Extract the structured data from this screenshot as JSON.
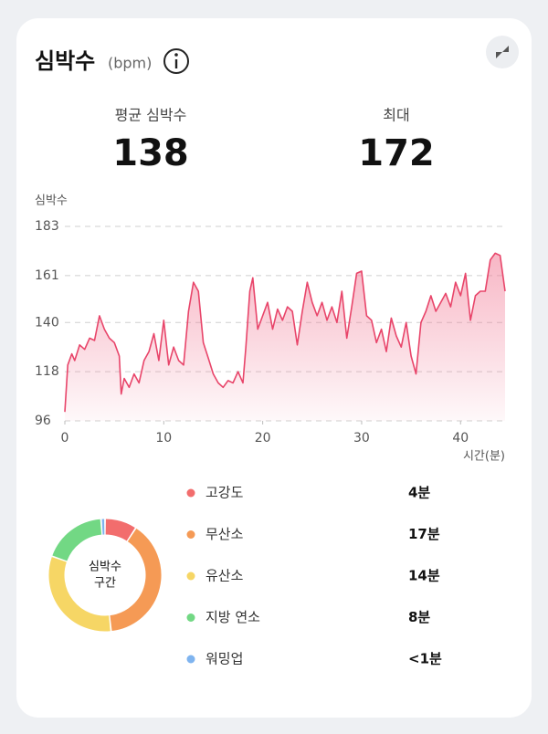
{
  "header": {
    "title": "심박수",
    "unit": "(bpm)"
  },
  "stats": [
    {
      "label": "평균 심박수",
      "value": 138
    },
    {
      "label": "최대",
      "value": 172
    }
  ],
  "chart_data": [
    {
      "type": "area",
      "y_label": "심박수",
      "x_label": "시간(분)",
      "color": "#e8456a",
      "grid": true,
      "xlim": [
        0,
        44.5
      ],
      "xticks": [
        0,
        10,
        20,
        30,
        40
      ],
      "ylim": [
        96,
        183
      ],
      "yticks": [
        96,
        118,
        140,
        161,
        183
      ],
      "x": [
        0,
        0.3,
        0.7,
        1,
        1.5,
        2,
        2.5,
        3,
        3.5,
        4,
        4.5,
        5,
        5.5,
        5.7,
        6,
        6.5,
        7,
        7.5,
        8,
        8.5,
        9,
        9.5,
        10,
        10.5,
        11,
        11.5,
        12,
        12.5,
        13,
        13.5,
        14,
        14.5,
        15,
        15.5,
        16,
        16.5,
        17,
        17.5,
        18,
        18.3,
        18.7,
        19,
        19.5,
        20,
        20.5,
        21,
        21.5,
        22,
        22.5,
        23,
        23.5,
        24,
        24.5,
        25,
        25.5,
        26,
        26.5,
        27,
        27.5,
        28,
        28.5,
        29,
        29.5,
        30,
        30.5,
        31,
        31.5,
        32,
        32.5,
        33,
        33.5,
        34,
        34.5,
        35,
        35.5,
        36,
        36.5,
        37,
        37.5,
        38,
        38.5,
        39,
        39.5,
        40,
        40.5,
        41,
        41.5,
        42,
        42.5,
        43,
        43.5,
        44,
        44.5
      ],
      "values": [
        100,
        121,
        126,
        123,
        130,
        128,
        133,
        132,
        143,
        137,
        133,
        131,
        125,
        108,
        115,
        111,
        117,
        113,
        123,
        127,
        135,
        123,
        141,
        121,
        129,
        123,
        121,
        145,
        158,
        154,
        131,
        124,
        117,
        113,
        111,
        114,
        113,
        118,
        113,
        129,
        154,
        160,
        137,
        143,
        149,
        137,
        146,
        141,
        147,
        145,
        130,
        145,
        158,
        149,
        143,
        149,
        141,
        147,
        140,
        154,
        133,
        147,
        162,
        163,
        143,
        141,
        131,
        137,
        127,
        142,
        134,
        129,
        140,
        125,
        117,
        140,
        145,
        152,
        145,
        149,
        153,
        147,
        158,
        152,
        162,
        141,
        152,
        154,
        154,
        168,
        171,
        170,
        154
      ]
    },
    {
      "type": "donut",
      "center_label": [
        "심박수",
        "구간"
      ],
      "categories": [
        "고강도",
        "무산소",
        "유산소",
        "지방 연소",
        "워밍업"
      ],
      "values": [
        4,
        17,
        14,
        8,
        0.5
      ],
      "value_labels": [
        "4분",
        "17분",
        "14분",
        "8분",
        "<1분"
      ],
      "colors": [
        "#f26d6d",
        "#f59a55",
        "#f6d665",
        "#72d884",
        "#7fb4ef"
      ]
    }
  ]
}
